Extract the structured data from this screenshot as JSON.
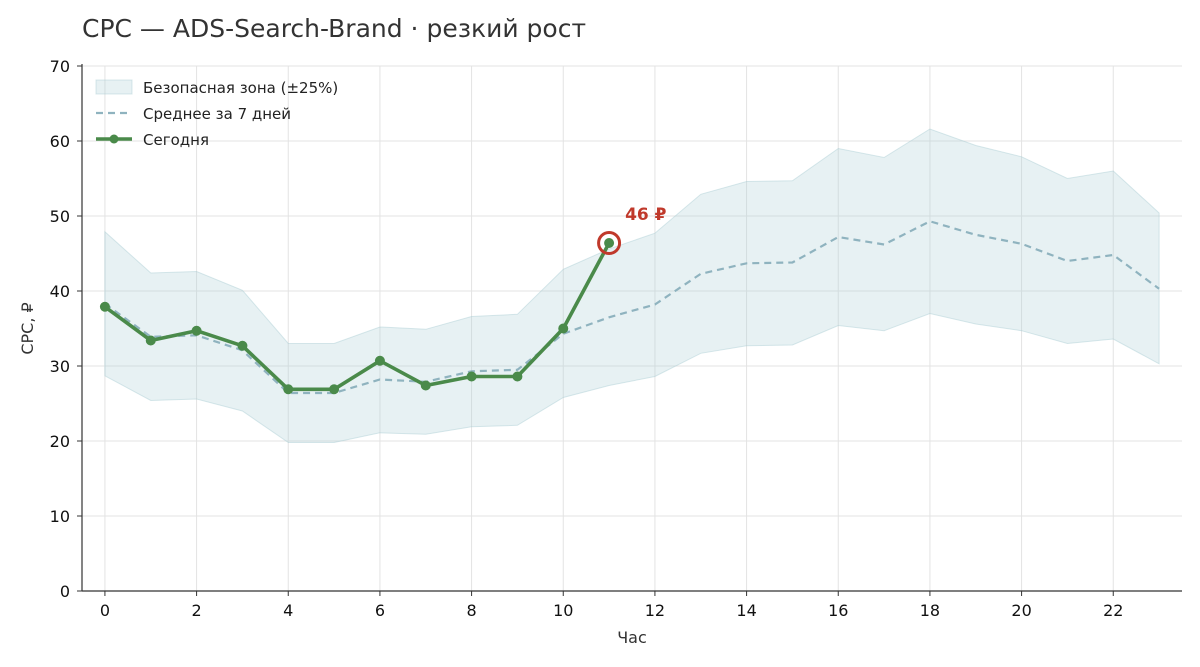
{
  "chart_data": {
    "type": "line",
    "title": "CPC — ADS-Search-Brand · резкий рост",
    "xlabel": "Час",
    "ylabel": "CPC, ₽",
    "xlim": [
      -0.5,
      23.5
    ],
    "ylim": [
      0,
      70
    ],
    "x_ticks": [
      0,
      2,
      4,
      6,
      8,
      10,
      12,
      14,
      16,
      18,
      20,
      22
    ],
    "y_ticks": [
      0,
      10,
      20,
      30,
      40,
      50,
      60,
      70
    ],
    "grid": true,
    "legend_position": "top-left",
    "band": {
      "name": "Безопасная зона (±25%)",
      "color": "#a9cdd3",
      "x": [
        0,
        1,
        2,
        3,
        4,
        5,
        6,
        7,
        8,
        9,
        10,
        11,
        12,
        13,
        14,
        15,
        16,
        17,
        18,
        19,
        20,
        21,
        22,
        23
      ],
      "lower": [
        28.7,
        25.4,
        25.6,
        24.0,
        19.8,
        19.8,
        21.1,
        20.9,
        21.9,
        22.1,
        25.8,
        27.4,
        28.6,
        31.7,
        32.7,
        32.8,
        35.4,
        34.7,
        37.0,
        35.6,
        34.7,
        33.0,
        33.6,
        30.3
      ],
      "upper": [
        47.9,
        42.4,
        42.6,
        40.1,
        33.0,
        33.0,
        35.2,
        34.9,
        36.6,
        36.9,
        42.9,
        45.6,
        47.7,
        52.9,
        54.6,
        54.7,
        59.0,
        57.8,
        61.6,
        59.4,
        57.9,
        55.0,
        56.0,
        50.4
      ]
    },
    "series": [
      {
        "name": "Среднее за 7 дней",
        "style": "dashed",
        "color": "#8fb3bf",
        "x": [
          0,
          1,
          2,
          3,
          4,
          5,
          6,
          7,
          8,
          9,
          10,
          11,
          12,
          13,
          14,
          15,
          16,
          17,
          18,
          19,
          20,
          21,
          22,
          23
        ],
        "values": [
          38.3,
          33.9,
          34.1,
          32.1,
          26.4,
          26.4,
          28.2,
          27.9,
          29.3,
          29.5,
          34.3,
          36.5,
          38.2,
          42.3,
          43.7,
          43.8,
          47.2,
          46.2,
          49.3,
          47.5,
          46.3,
          44.0,
          44.8,
          40.3
        ]
      },
      {
        "name": "Сегодня",
        "style": "solid-markers",
        "color": "#4a8a4a",
        "x": [
          0,
          1,
          2,
          3,
          4,
          5,
          6,
          7,
          8,
          9,
          10,
          11
        ],
        "values": [
          37.9,
          33.4,
          34.7,
          32.7,
          26.9,
          26.9,
          30.7,
          27.4,
          28.6,
          28.6,
          35.0,
          46.4
        ]
      }
    ],
    "annotation": {
      "x": 11,
      "y": 46.4,
      "text": "46 ₽",
      "color": "#c0392b"
    }
  }
}
